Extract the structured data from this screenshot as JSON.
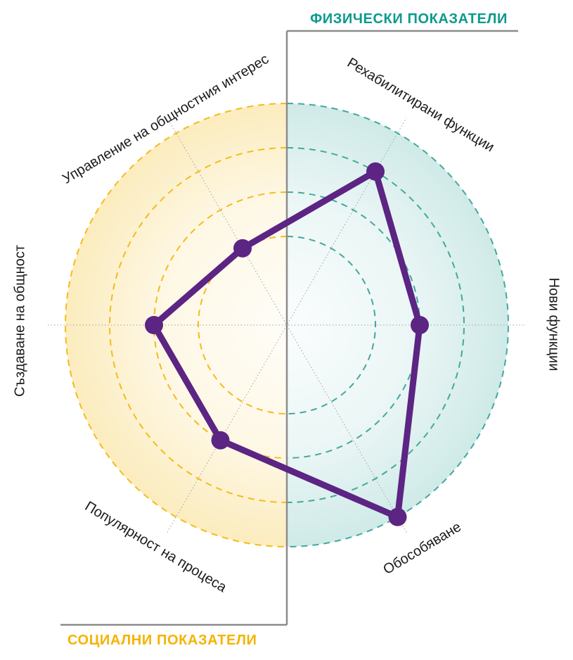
{
  "chart_data": {
    "type": "radar",
    "axes": [
      "Рехабилитирани функции",
      "Нови функции",
      "Обособяване",
      "Популярност на процеса",
      "Създаване на общност",
      "Управление на общностния интерес"
    ],
    "values": [
      4,
      3,
      5,
      3,
      3,
      2
    ],
    "scale_max": 5,
    "rings": [
      2,
      3,
      4,
      5
    ],
    "angles_deg": [
      60,
      0,
      300,
      240,
      180,
      120
    ],
    "groups": [
      {
        "label": "ФИЗИЧЕСКИ ПОКАЗАТЕЛИ",
        "color": "#0b9a8d",
        "axes": [
          "Рехабилитирани функции",
          "Нови функции",
          "Обособяване"
        ]
      },
      {
        "label": "СОЦИАЛНИ ПОКАЗАТЕЛИ",
        "color": "#f5b301",
        "axes": [
          "Популярност на процеса",
          "Създаване на общност",
          "Управление на общностния интерес"
        ]
      }
    ],
    "colors": {
      "series": "#5c2483",
      "physical_ring": "#44a89c",
      "social_ring": "#f4bc1b",
      "physical_fill": "#0f968c",
      "social_fill": "#f2b705",
      "divider": "#8c8c8c",
      "spoke": "#a0a0a0",
      "label_text": "#1b1b1b"
    },
    "legend_position": "none",
    "grid": "dashed-circular-half-split"
  }
}
